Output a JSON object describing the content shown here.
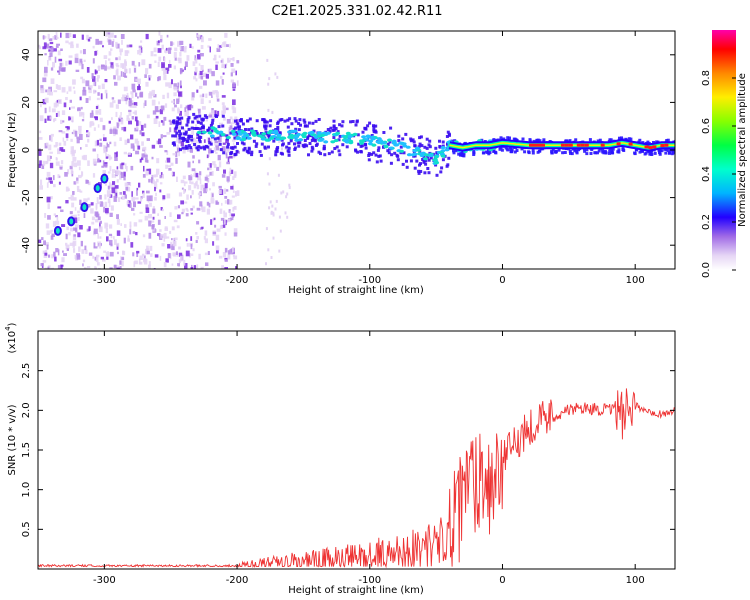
{
  "title": "C2E1.2025.331.02.42.R11",
  "chart_data": [
    {
      "type": "heatmap",
      "name": "spectrogram",
      "xlabel": "Height of straight line (km)",
      "ylabel": "Frequency (Hz)",
      "xlim": [
        -350,
        130
      ],
      "ylim": [
        -50,
        50
      ],
      "xticks": [
        -300,
        -200,
        -100,
        0,
        100
      ],
      "yticks": [
        -40,
        -20,
        0,
        20,
        40
      ],
      "ridge": {
        "x": [
          -250,
          -230,
          -210,
          -190,
          -170,
          -150,
          -130,
          -110,
          -100,
          -90,
          -80,
          -70,
          -60,
          -50,
          -40,
          -30,
          -20,
          -10,
          0,
          20,
          40,
          60,
          80,
          90,
          100,
          110,
          120,
          130
        ],
        "y": [
          9,
          8,
          7,
          6,
          6,
          6,
          5,
          5,
          4,
          3,
          2,
          0,
          -2,
          -4,
          2,
          1,
          2,
          2,
          3,
          2,
          2,
          2,
          2,
          3,
          2,
          1,
          2,
          2
        ]
      },
      "low_track": {
        "x": [
          -335,
          -325,
          -315,
          -305,
          -300
        ],
        "y": [
          -34,
          -30,
          -24,
          -16,
          -12
        ]
      },
      "colorbar": {
        "label": "Normalized spectral amplitude",
        "range": [
          0,
          1
        ],
        "ticks": [
          0.0,
          0.2,
          0.4,
          0.6,
          0.8
        ]
      }
    },
    {
      "type": "line",
      "name": "snr",
      "xlabel": "Height of straight line (km)",
      "ylabel": "SNR (10 * v/v)",
      "ylabel_scale": "(x10",
      "ylabel_exponent": "4",
      "xlim": [
        -350,
        130
      ],
      "ylim": [
        0,
        3.0
      ],
      "xticks": [
        -300,
        -200,
        -100,
        0,
        100
      ],
      "yticks": [
        0.5,
        1.0,
        1.5,
        2.0,
        2.5
      ],
      "color": "#ee3333",
      "series": [
        {
          "name": "SNR",
          "x": [
            -350,
            -300,
            -250,
            -200,
            -180,
            -160,
            -140,
            -120,
            -100,
            -80,
            -60,
            -50,
            -40,
            -35,
            -30,
            -25,
            -20,
            -15,
            -10,
            -5,
            0,
            10,
            20,
            30,
            40,
            50,
            60,
            70,
            80,
            90,
            92,
            94,
            96,
            100,
            110,
            120,
            130
          ],
          "y": [
            0.04,
            0.04,
            0.04,
            0.04,
            0.05,
            0.08,
            0.1,
            0.12,
            0.15,
            0.2,
            0.28,
            0.32,
            0.45,
            0.6,
            0.8,
            1.2,
            1.1,
            1.3,
            1.05,
            1.2,
            1.35,
            1.6,
            1.8,
            1.9,
            1.95,
            2.0,
            2.03,
            2.02,
            2.0,
            2.0,
            1.6,
            2.3,
            1.8,
            2.05,
            2.0,
            1.95,
            2.0
          ]
        }
      ]
    }
  ]
}
